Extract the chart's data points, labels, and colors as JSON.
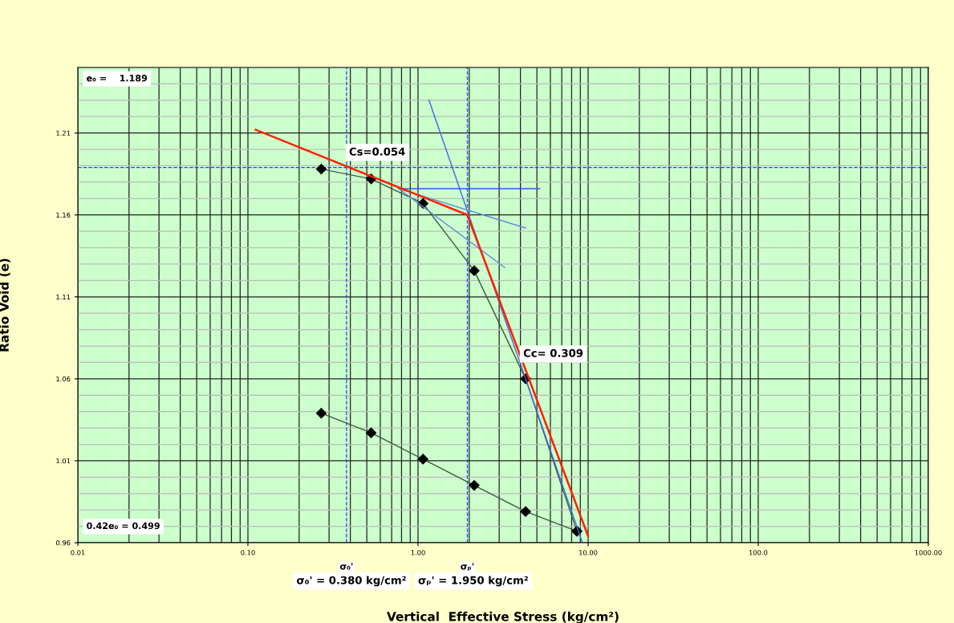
{
  "chart_data": {
    "type": "line",
    "xlabel": "Vertical  Effective Stress (kg/cm²)",
    "ylabel": "Ratio Void (e)",
    "log": "x",
    "xlim": [
      0.01,
      1000
    ],
    "xticks": [
      {
        "value": 0.01,
        "label": "0.01"
      },
      {
        "value": 0.1,
        "label": "0.10"
      },
      {
        "value": 1,
        "label": "1.00"
      },
      {
        "value": 10,
        "label": "10.00"
      },
      {
        "value": 100,
        "label": "100.0"
      },
      {
        "value": 1000,
        "label": "1000.00"
      }
    ],
    "ylim": [
      0.96,
      1.25
    ],
    "yticks": [
      0.96,
      1.01,
      1.06,
      1.11,
      1.16,
      1.21
    ],
    "grid": true,
    "series": [
      {
        "color": "#3d5a3d",
        "marker": "diamond",
        "x": [
          0.27,
          0.53,
          1.07,
          2.14,
          4.29,
          8.59
        ],
        "values": [
          1.188,
          1.182,
          1.167,
          1.126,
          1.06,
          0.967
        ]
      },
      {
        "color": "#3d5a3d",
        "marker": "diamond",
        "x": [
          8.59,
          4.29,
          2.14,
          1.07,
          0.53,
          0.27
        ],
        "values": [
          0.967,
          0.979,
          0.995,
          1.011,
          1.027,
          1.039
        ]
      },
      {
        "color": "#4169e1",
        "marker": "none",
        "x": [
          1.16,
          9.26
        ],
        "values": [
          1.23,
          0.96
        ]
      },
      {
        "color": "#3355ee",
        "marker": "none",
        "x": [
          0.77,
          5.2
        ],
        "values": [
          1.176,
          1.176
        ]
      },
      {
        "color": "#5a8be0",
        "marker": "none",
        "x": [
          0.77,
          3.23
        ],
        "values": [
          1.176,
          1.128
        ]
      },
      {
        "color": "#5a8be0",
        "marker": "none",
        "x": [
          0.77,
          4.29
        ],
        "values": [
          1.176,
          1.152
        ]
      },
      {
        "color": "#ff2000",
        "marker": "none",
        "x": [
          0.111,
          1.95,
          10
        ],
        "values": [
          1.212,
          1.16,
          0.964
        ]
      }
    ],
    "ref_lines": [
      {
        "axis": "x",
        "value": 0.38,
        "label": "σ₀'",
        "color": "#2244ee",
        "line_style": "dashed"
      },
      {
        "axis": "x",
        "value": 1.95,
        "label": "σₚ'",
        "color": "#2244ee",
        "line_style": "dashed"
      },
      {
        "axis": "y",
        "value": 1.189,
        "color": "#2244ee",
        "line_style": "dashed"
      }
    ],
    "annotations": [
      "e₀ =    1.189",
      "0.42e₀ = 0.499",
      "Cs=0.054",
      "Cc= 0.309",
      "σ₀' = 0.380 kg/cm²",
      "σₚ' = 1.950 kg/cm²"
    ]
  }
}
